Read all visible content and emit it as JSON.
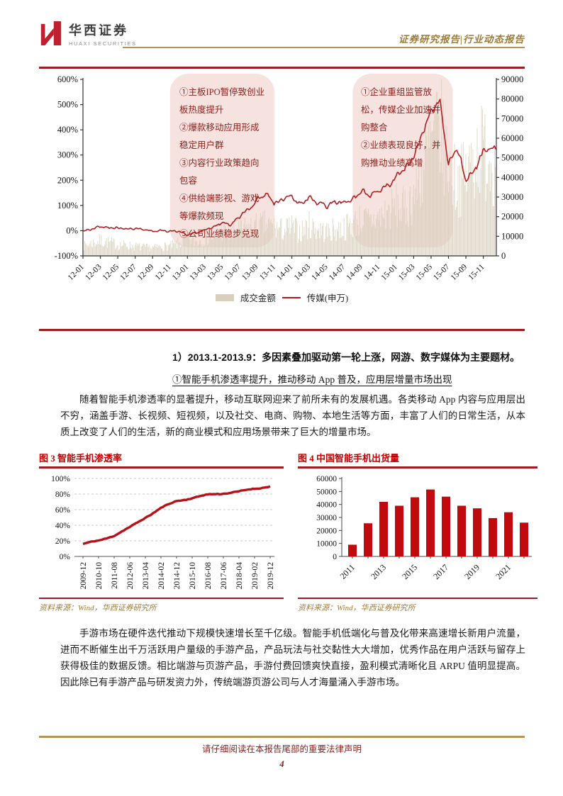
{
  "header": {
    "brand_cn": "华西证券",
    "brand_en": "HUAXI SECURITIES",
    "doc_type": "证券研究报告|行业动态报告"
  },
  "main_chart": {
    "legend_bar": "成交金额",
    "legend_line": "传媒(申万)",
    "annotation1": [
      "①主板IPO暂停致创业板热度提升",
      "②爆款移动应用形成稳定用户群",
      "③内容行业政策趋向包容",
      "④供给端影视、游戏等爆款频现",
      "⑤公司业绩稳步兑现"
    ],
    "annotation2": [
      "①企业重组监管放松，传媒企业加速并购整合",
      "②业绩表现良好，并购推动业绩高增"
    ]
  },
  "chart_data": [
    {
      "id": "media-index-vs-turnover",
      "type": "line+bar",
      "left_ylabel_unit": "%",
      "left_ylim": [
        -100,
        600
      ],
      "left_ticks": [
        "600%",
        "500%",
        "400%",
        "300%",
        "200%",
        "100%",
        "0%",
        "-100%"
      ],
      "right_ylim": [
        0,
        90000
      ],
      "right_ticks": [
        "90000",
        "80000",
        "70000",
        "60000",
        "50000",
        "40000",
        "30000",
        "20000",
        "10000",
        "0"
      ],
      "x_tick_labels": [
        "12-01",
        "12-03",
        "12-05",
        "12-07",
        "12-09",
        "12-11",
        "13-01",
        "13-03",
        "13-05",
        "13-07",
        "13-09",
        "13-11",
        "14-01",
        "14-03",
        "14-05",
        "14-07",
        "14-09",
        "14-11",
        "15-01",
        "15-03",
        "15-05",
        "15-07",
        "15-09",
        "15-11"
      ],
      "months_total": 48,
      "line_series": {
        "name": "传媒(申万)",
        "axis": "left",
        "monthly_pct": [
          -2,
          8,
          16,
          10,
          12,
          6,
          8,
          2,
          -2,
          0,
          -3,
          -6,
          -16,
          -8,
          4,
          14,
          32,
          24,
          58,
          88,
          120,
          150,
          110,
          124,
          134,
          104,
          130,
          108,
          98,
          114,
          108,
          126,
          150,
          140,
          160,
          185,
          210,
          240,
          295,
          385,
          475,
          518,
          268,
          335,
          205,
          248,
          318,
          322
        ]
      },
      "bar_series": {
        "name": "成交金额",
        "axis": "right",
        "monthly": [
          5000,
          6500,
          8000,
          7000,
          6000,
          5500,
          5000,
          4500,
          4200,
          4800,
          5200,
          6500,
          9000,
          7500,
          9500,
          10000,
          13000,
          11000,
          13500,
          14500,
          15500,
          16500,
          15000,
          13500,
          15000,
          12500,
          16000,
          14000,
          12500,
          13500,
          14500,
          17000,
          19000,
          18000,
          20000,
          23000,
          26000,
          24000,
          32000,
          44000,
          58000,
          66000,
          48000,
          38000,
          42000,
          52000,
          56000,
          50000
        ]
      },
      "highlight_regions": [
        {
          "from_month": 10,
          "to_month": 22
        },
        {
          "from_month": 31,
          "to_month": 42.5
        }
      ]
    },
    {
      "id": "smartphone-penetration",
      "type": "line",
      "title": "图 3 智能手机渗透率",
      "x": [
        "2009-12",
        "2010-10",
        "2011-08",
        "2012-06",
        "2013-04",
        "2014-02",
        "2014-12",
        "2015-10",
        "2016-08",
        "2017-06",
        "2018-04",
        "2019-02",
        "2019-12"
      ],
      "values": [
        16,
        20,
        27,
        37,
        50,
        62,
        71,
        75,
        79,
        81,
        83,
        87,
        90
      ],
      "ylim": [
        0,
        100
      ],
      "y_ticks": [
        "100%",
        "80%",
        "60%",
        "40%",
        "20%",
        "0%"
      ],
      "grid": "dashed-horizontal",
      "line_color": "#b5121b"
    },
    {
      "id": "china-smartphone-shipments",
      "type": "bar",
      "title": "图 4 中国智能手机出货量",
      "categories": [
        "2011",
        "2012",
        "2013",
        "2014",
        "2015",
        "2016",
        "2017",
        "2018",
        "2019",
        "2020",
        "2021",
        "2022"
      ],
      "values": [
        9000,
        25500,
        42000,
        39000,
        45500,
        51500,
        46000,
        39000,
        37000,
        29500,
        34000,
        26000
      ],
      "ylim": [
        0,
        60000
      ],
      "y_ticks": [
        "60000",
        "50000",
        "40000",
        "30000",
        "20000",
        "10000",
        "0"
      ],
      "x_tick_labels": [
        "2011",
        "2013",
        "2015",
        "2017",
        "2019",
        "2021"
      ],
      "bar_color": "#c10a0d"
    }
  ],
  "body": {
    "heading": "1）2013.1-2013.9：多因素叠加驱动第一轮上涨，网游、数字媒体为主要题材。",
    "subheading": "①智能手机渗透率提升，推动移动 App 普及，应用层增量市场出现",
    "paragraph1": "随着智能手机渗透率的显著提升，移动互联网迎来了前所未有的发展机遇。各类移动 App 内容与应用层出不穷，涵盖手游、长视频、短视频，以及社交、电商、购物、本地生活等方面，丰富了人们的日常生活，从本质上改变了人们的生活，新的商业模式和应用场景带来了巨大的增量市场。",
    "paragraph2": "手游市场在硬件迭代推动下规模快速增长至千亿级。智能手机低端化与普及化带来高速增长新用户流量，进而不断催生出千万活跃用户量级的手游产品，产品玩法与社交黏性大大增加，优秀作品在用户活跃与留存上获得极佳的数据反馈。相比端游与页游产品，手游付费回馈爽快直接，盈利模式清晰化且 ARPU 值明显提高。因此除已有手游产品与研发资力外，传统端游页游公司与人才海量涌入手游市场。"
  },
  "figure3": {
    "title": "图 3 智能手机渗透率",
    "source": "资料来源：Wind，华西证券研究所"
  },
  "figure4": {
    "title": "图 4 中国智能手机出货量",
    "source": "资料来源：Wind，华西证券研究所"
  },
  "footer": {
    "disclaimer": "请仔细阅读在本报告尾部的重要法律声明",
    "page_number": "4"
  },
  "colors": {
    "brand_red": "#c01f2f",
    "rule_dark_red": "#9e1c20",
    "gold": "#b69356",
    "gold_text": "#9d7c3a",
    "line_red": "#b01e23",
    "bar_beige": "#d8cfbc",
    "highlight_pink": "#f6e2df",
    "fig_title_red": "#c00000",
    "maroon_text": "#8a231f"
  }
}
